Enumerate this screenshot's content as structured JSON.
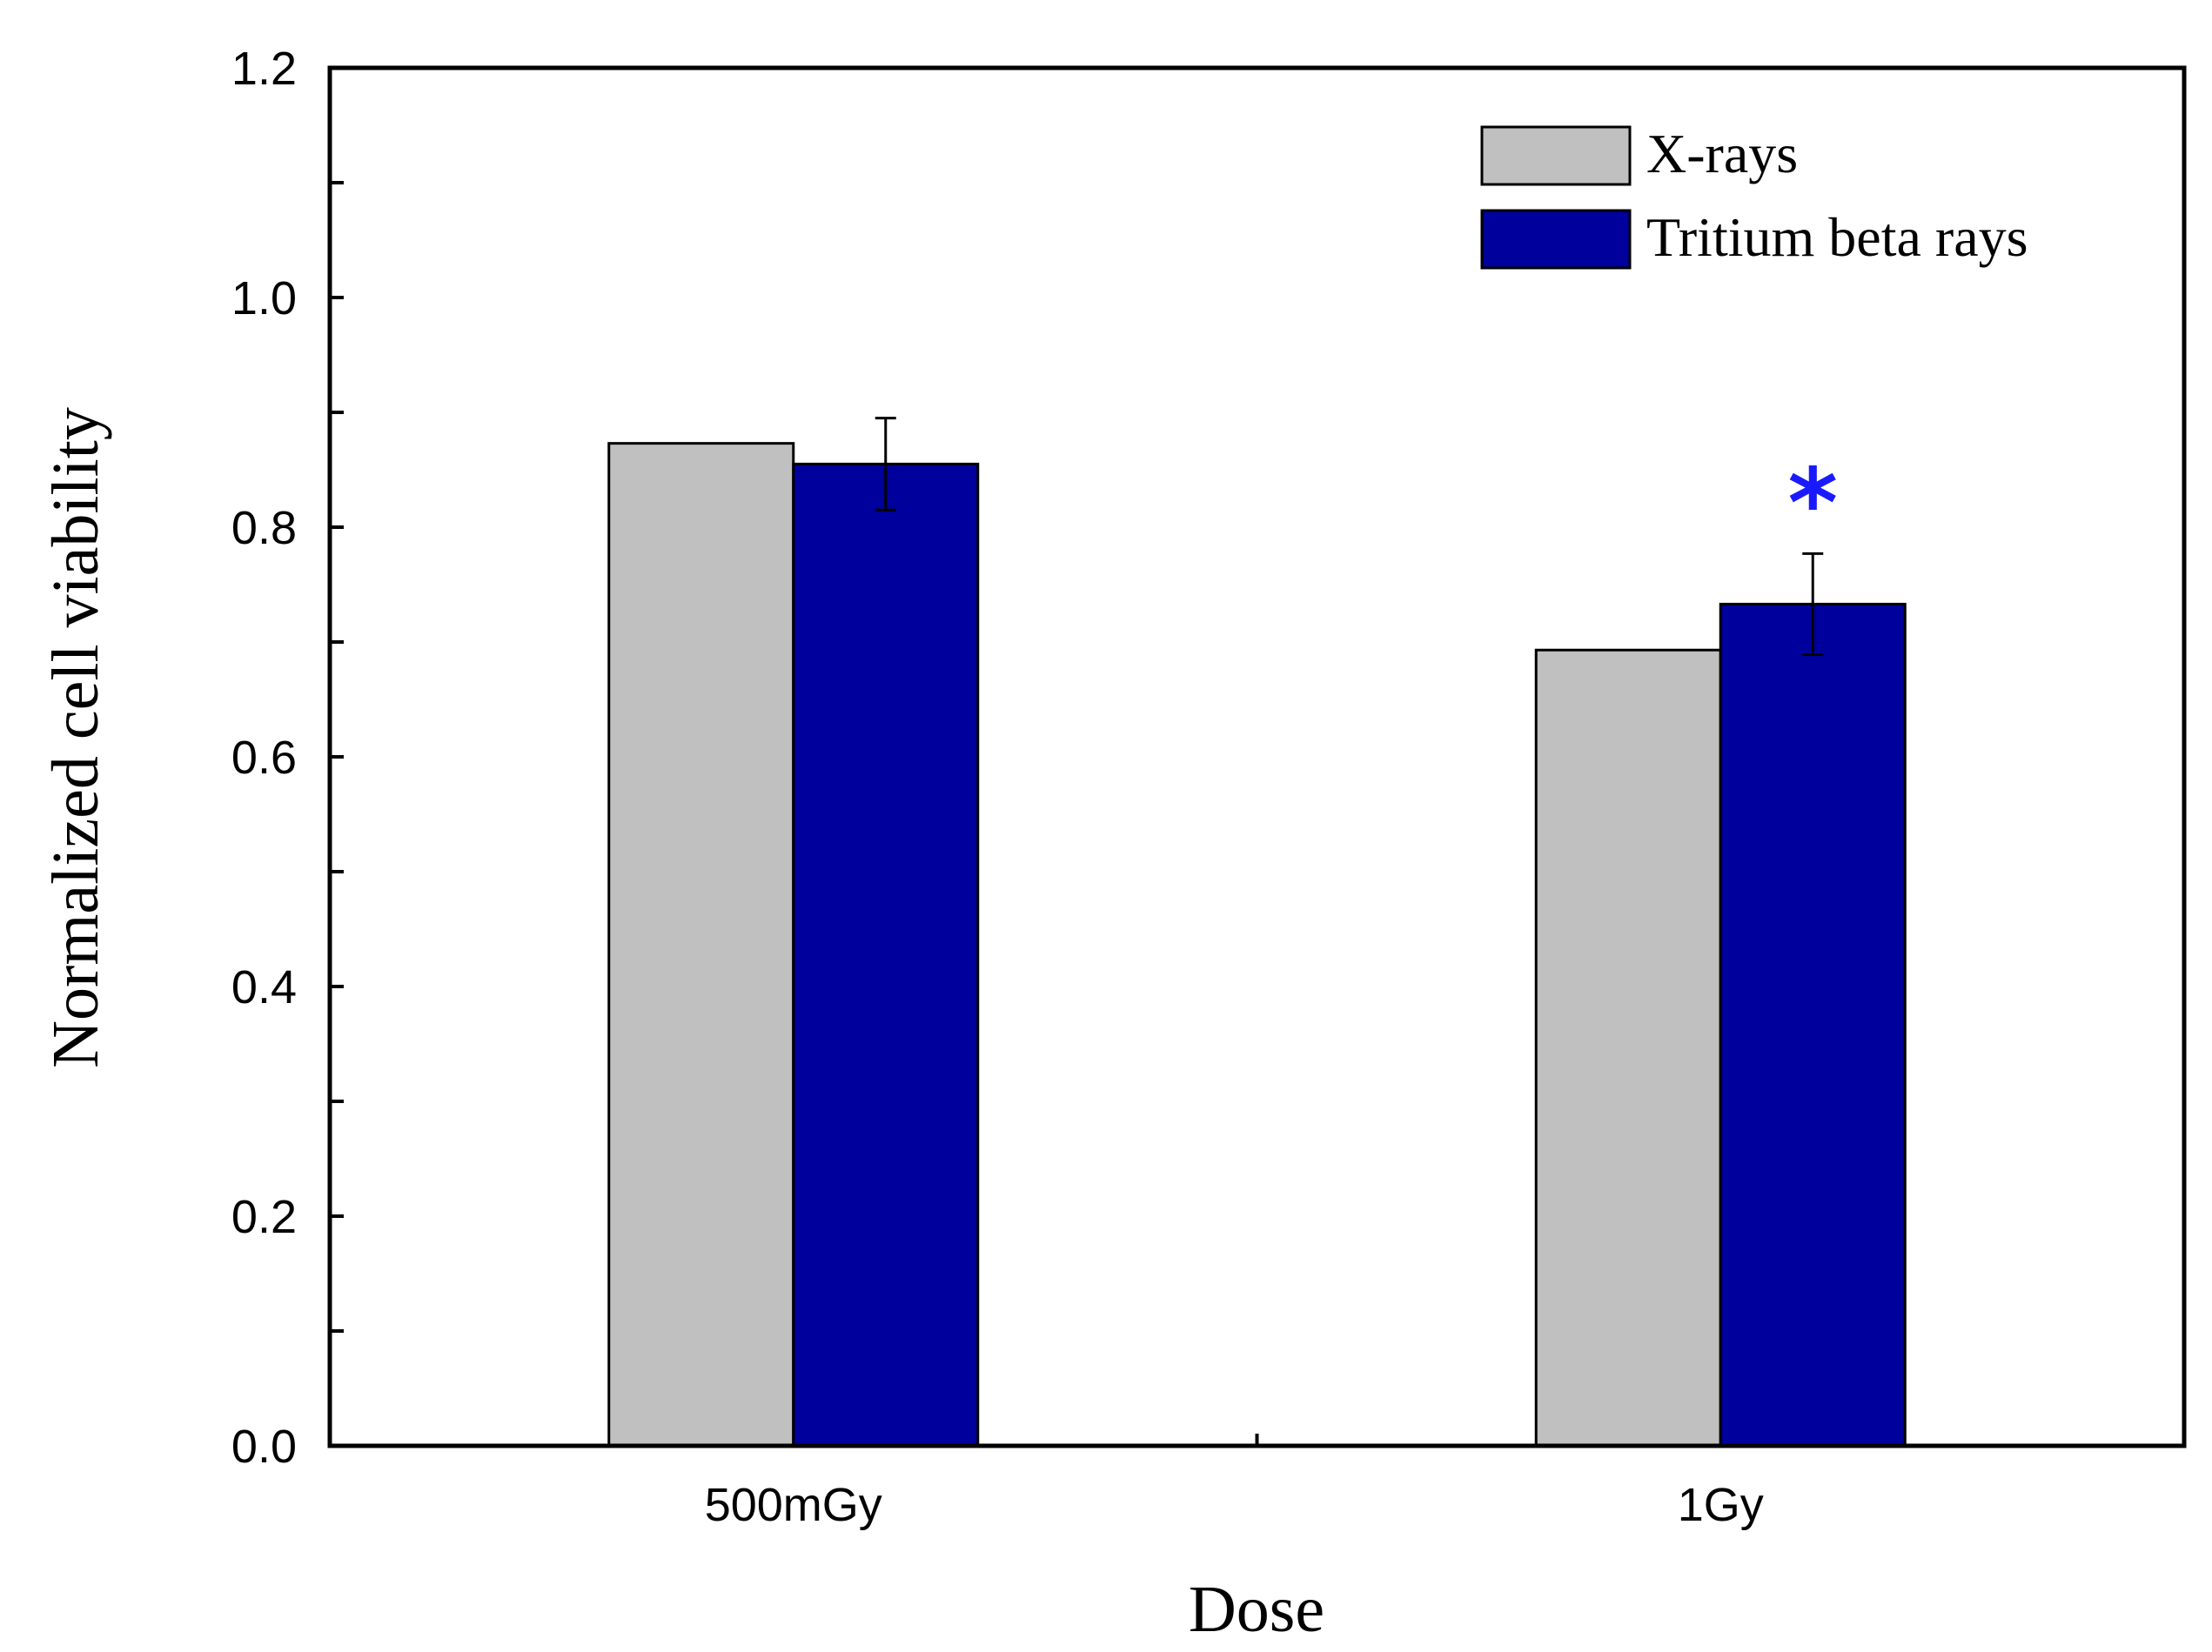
{
  "chart_data": {
    "type": "bar",
    "categories": [
      "500mGy",
      "1Gy"
    ],
    "series": [
      {
        "name": "X-rays",
        "values": [
          0.873,
          0.693
        ],
        "errors": [
          null,
          null
        ],
        "color": "#c0c0c0"
      },
      {
        "name": "Tritium beta rays",
        "values": [
          0.855,
          0.733
        ],
        "errors": [
          0.04,
          0.044
        ],
        "color": "#00009c"
      }
    ],
    "title": "",
    "xlabel": "Dose",
    "ylabel": "Normalized cell viability",
    "ylim": [
      0,
      1.2
    ],
    "yticks": [
      "0.0",
      "0.2",
      "0.4",
      "0.6",
      "0.8",
      "1.0",
      "1.2"
    ],
    "annotations": [
      {
        "text": "*",
        "category": "1Gy",
        "series": "Tritium beta rays",
        "color": "#1a1aff"
      }
    ],
    "legend_position": "top-right",
    "grid": false
  }
}
